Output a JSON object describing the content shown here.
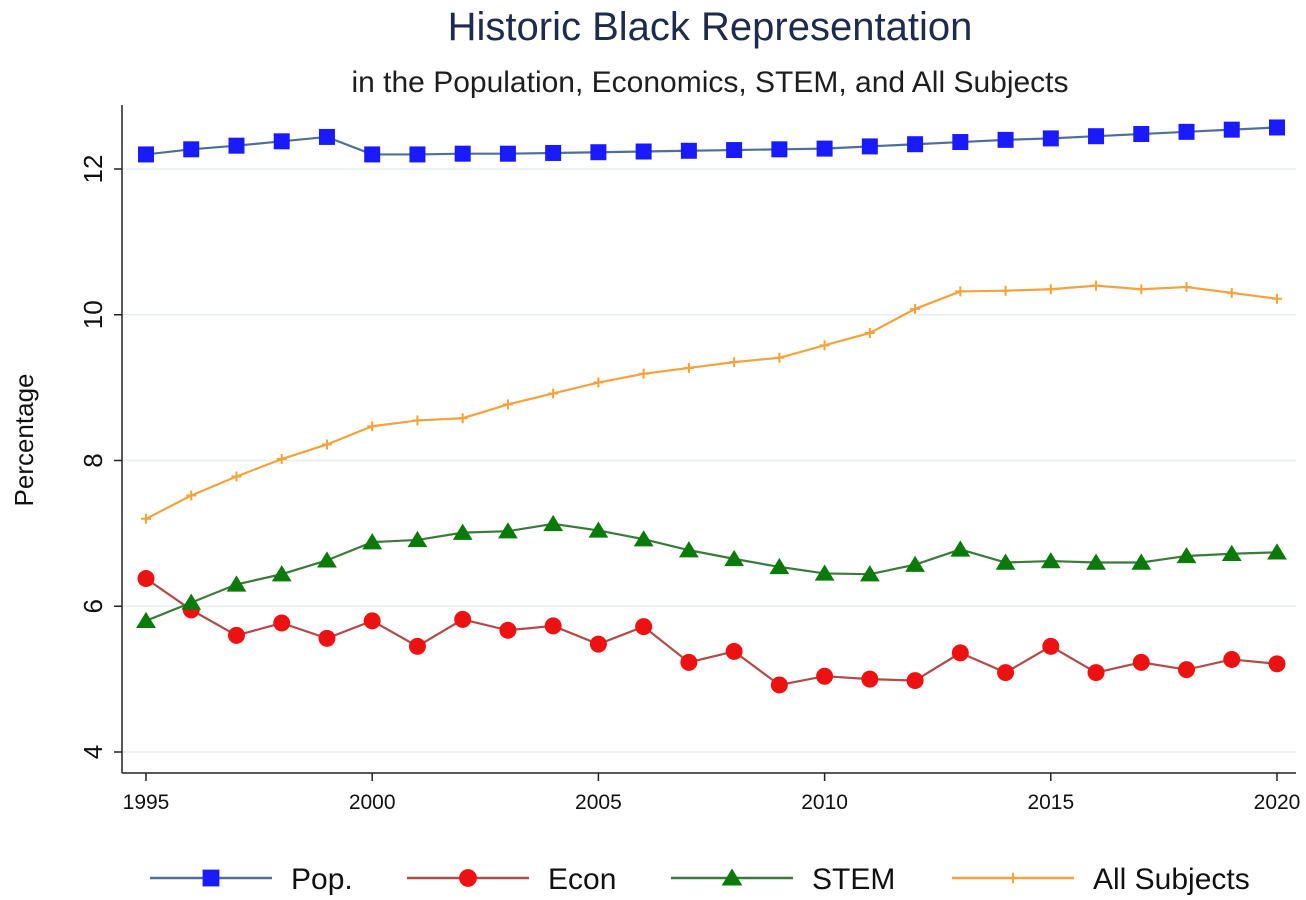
{
  "chart_data": {
    "type": "line",
    "title": "Historic Black Representation",
    "subtitle": "in the Population, Economics, STEM, and All Subjects",
    "xlabel": "",
    "ylabel": "Percentage",
    "xlim": [
      1995,
      2020
    ],
    "ylim": [
      4,
      12.8
    ],
    "x_ticks": [
      "1995",
      "2000",
      "2005",
      "2010",
      "2015",
      "2020"
    ],
    "y_ticks": [
      "4",
      "6",
      "8",
      "10",
      "12"
    ],
    "grid": true,
    "legend_position": "bottom",
    "x": [
      1995,
      1996,
      1997,
      1998,
      1999,
      2000,
      2001,
      2002,
      2003,
      2004,
      2005,
      2006,
      2007,
      2008,
      2009,
      2010,
      2011,
      2012,
      2013,
      2014,
      2015,
      2016,
      2017,
      2018,
      2019,
      2020
    ],
    "series": [
      {
        "name": "Pop.",
        "color": "#1a1aff",
        "line_color": "#4f6f9a",
        "marker": "square",
        "values": [
          12.2,
          12.27,
          12.32,
          12.38,
          12.44,
          12.2,
          12.2,
          12.21,
          12.21,
          12.22,
          12.23,
          12.24,
          12.25,
          12.26,
          12.27,
          12.28,
          12.31,
          12.34,
          12.37,
          12.4,
          12.42,
          12.45,
          12.48,
          12.51,
          12.54,
          12.57
        ]
      },
      {
        "name": "Econ",
        "color": "#ee1111",
        "line_color": "#b24a4a",
        "marker": "circle",
        "values": [
          6.38,
          5.95,
          5.6,
          5.77,
          5.56,
          5.8,
          5.45,
          5.82,
          5.67,
          5.73,
          5.48,
          5.72,
          5.23,
          5.38,
          4.92,
          5.04,
          5.0,
          4.98,
          5.36,
          5.09,
          5.45,
          5.09,
          5.23,
          5.13,
          5.27,
          5.21
        ]
      },
      {
        "name": "STEM",
        "color": "#0a7a0a",
        "line_color": "#3b7a3b",
        "marker": "triangle",
        "values": [
          5.8,
          6.05,
          6.3,
          6.44,
          6.63,
          6.88,
          6.91,
          7.01,
          7.03,
          7.13,
          7.04,
          6.92,
          6.77,
          6.65,
          6.54,
          6.45,
          6.44,
          6.57,
          6.78,
          6.6,
          6.62,
          6.6,
          6.6,
          6.69,
          6.72,
          6.74
        ]
      },
      {
        "name": "All Subjects",
        "color": "#f7a13a",
        "line_color": "#f7a13a",
        "marker": "plus",
        "values": [
          7.2,
          7.52,
          7.78,
          8.02,
          8.22,
          8.47,
          8.55,
          8.58,
          8.77,
          8.92,
          9.07,
          9.19,
          9.27,
          9.35,
          9.41,
          9.58,
          9.75,
          10.08,
          10.32,
          10.33,
          10.35,
          10.4,
          10.35,
          10.38,
          10.3,
          10.22
        ]
      }
    ]
  }
}
